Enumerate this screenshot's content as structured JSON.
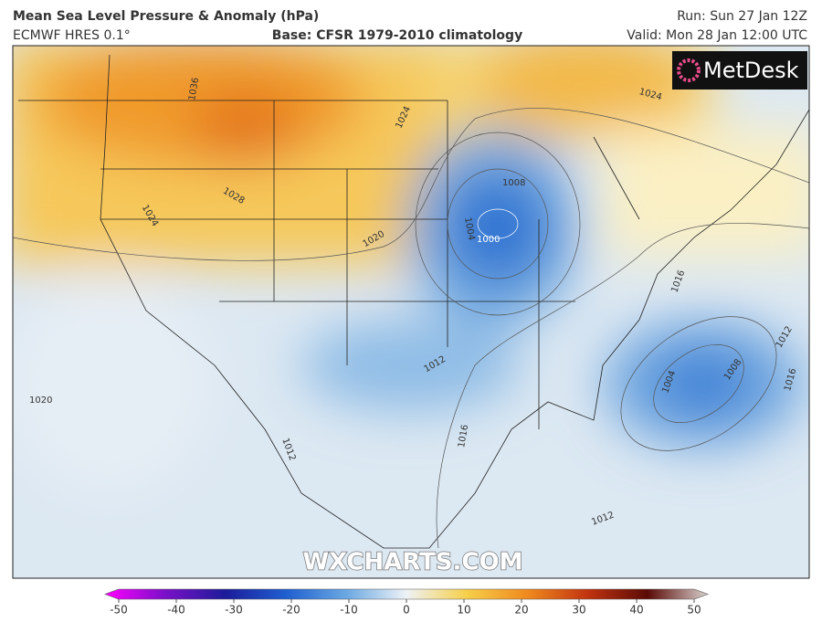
{
  "header": {
    "title": "Mean Sea Level Pressure & Anomaly (hPa)",
    "model": "ECMWF HRES 0.1°",
    "base": "Base: CFSR 1979-2010 climatology",
    "run": "Run: Sun 27 Jan 12Z",
    "valid": "Valid: Mon 28 Jan 12:00 UTC"
  },
  "logo": "MetDesk",
  "watermark": "WXCHARTS.COM",
  "contour_labels": [
    "1036",
    "1028",
    "1024",
    "1024",
    "1024",
    "1020",
    "1020",
    "1008",
    "1004",
    "1000",
    "1012",
    "1016",
    "1016",
    "1004",
    "1008",
    "1012",
    "1016",
    "1012",
    "1012"
  ],
  "colorbar": {
    "ticks": [
      -50,
      -40,
      -30,
      -20,
      -10,
      0,
      10,
      20,
      30,
      40,
      50
    ],
    "colors": [
      "#ff00ff",
      "#7a10c8",
      "#1c1c9a",
      "#1f5fd0",
      "#6aa8e2",
      "#eef2f6",
      "#f6cf4a",
      "#f08a1e",
      "#c23410",
      "#5a0a06",
      "#d8d0cc"
    ]
  }
}
